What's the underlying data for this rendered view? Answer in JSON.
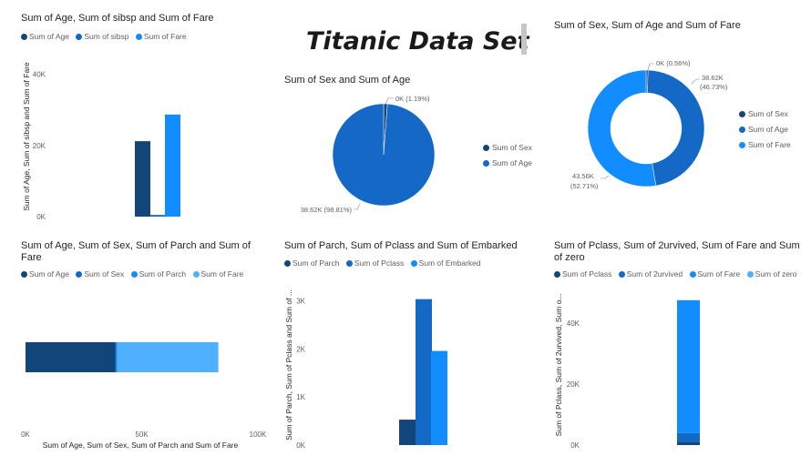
{
  "page_title": "Titanic Data Set",
  "colors": {
    "age": "#12467b",
    "sibsp": "#1469c6",
    "fare": "#118dff",
    "fare_alt": "#1d8cf0",
    "zero": "#4fb0ff",
    "label": "#605e5c"
  },
  "chart_data": [
    {
      "id": "c1",
      "type": "bar",
      "title": "Sum of Age, Sum of sibsp and Sum of Fare",
      "ylabel": "Sum of Age, Sum of sibsp and Sum of Fare",
      "xlabel": "",
      "series": [
        {
          "name": "Sum of Age",
          "values": [
            21205
          ]
        },
        {
          "name": "Sum of sibsp",
          "values": [
            466
          ]
        },
        {
          "name": "Sum of Fare",
          "values": [
            28694
          ]
        }
      ],
      "ylim": [
        0,
        44000
      ],
      "yticks": [
        0,
        20000,
        40000
      ],
      "ytick_labels": [
        "0K",
        "20K",
        "40K"
      ]
    },
    {
      "id": "c2",
      "type": "pie",
      "title": "Sum of Sex and Sum of Age",
      "labels": [
        "Sum of Sex",
        "Sum of Age"
      ],
      "values": [
        0.464,
        38.62
      ],
      "data_labels": [
        "0K (1.19%)",
        "38.62K (98.81%)"
      ]
    },
    {
      "id": "c3",
      "type": "pie",
      "title": "Sum of Sex, Sum of Age and Sum of Fare",
      "labels": [
        "Sum of Sex",
        "Sum of Age",
        "Sum of Fare"
      ],
      "values": [
        0.46,
        38.62,
        43.56
      ],
      "data_labels": [
        "0K (0.56%)",
        "38.62K\n(46.73%)",
        "43.56K\n(52.71%)"
      ]
    },
    {
      "id": "c4",
      "type": "bar",
      "orientation": "horizontal-stacked",
      "title": "Sum of Age, Sum of Sex, Sum of Parch and Sum of Fare",
      "xlabel": "Sum of Age, Sum of Sex, Sum of Parch and Sum of Fare",
      "series": [
        {
          "name": "Sum of Age",
          "values": [
            38620
          ]
        },
        {
          "name": "Sum of Sex",
          "values": [
            460
          ]
        },
        {
          "name": "Sum of Parch",
          "values": [
            340
          ]
        },
        {
          "name": "Sum of Fare",
          "values": [
            43560
          ]
        }
      ],
      "xlim": [
        0,
        100000
      ],
      "xticks": [
        0,
        50000,
        100000
      ],
      "xtick_labels": [
        "0K",
        "50K",
        "100K"
      ]
    },
    {
      "id": "c5",
      "type": "bar",
      "title": "Sum of Parch, Sum of Pclass and Sum of Embarked",
      "ylabel": "Sum of Parch, Sum of Pclass and Sum of ...",
      "series": [
        {
          "name": "Sum of Parch",
          "values": [
            529
          ]
        },
        {
          "name": "Sum of Pclass",
          "values": [
            3036
          ]
        },
        {
          "name": "Sum of Embarked",
          "values": [
            1958
          ]
        }
      ],
      "ylim": [
        0,
        3200
      ],
      "yticks": [
        0,
        1000,
        2000,
        3000
      ],
      "ytick_labels": [
        "0K",
        "1K",
        "2K",
        "3K"
      ]
    },
    {
      "id": "c6",
      "type": "bar",
      "orientation": "vertical-stacked",
      "title": "Sum of Pclass, Sum of 2urvived, Sum of Fare and Sum of zero",
      "ylabel": "Sum of Pclass, Sum of 2urvived, Sum o...",
      "series": [
        {
          "name": "Sum of Pclass",
          "values": [
            900
          ]
        },
        {
          "name": "Sum of 2urvived",
          "values": [
            3000
          ]
        },
        {
          "name": "Sum of Fare",
          "values": [
            43560
          ]
        },
        {
          "name": "Sum of zero",
          "values": [
            0
          ]
        }
      ],
      "ylim": [
        0,
        48000
      ],
      "yticks": [
        0,
        20000,
        40000
      ],
      "ytick_labels": [
        "0K",
        "20K",
        "40K"
      ]
    }
  ]
}
